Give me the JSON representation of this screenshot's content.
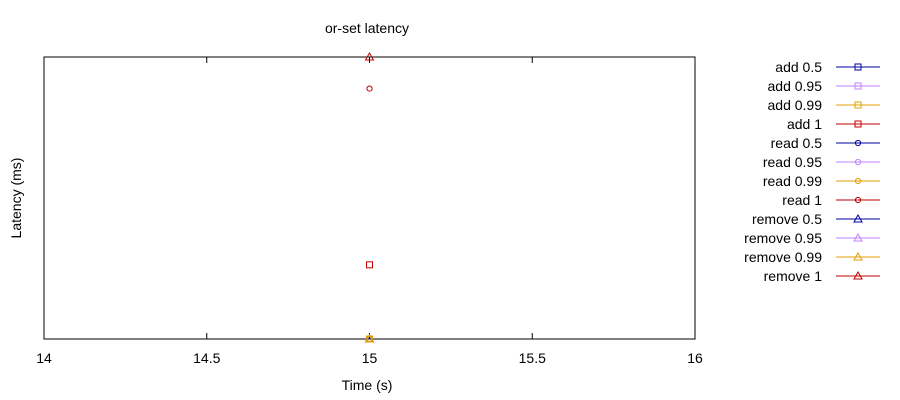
{
  "chart_data": {
    "type": "scatter",
    "title": "or-set latency",
    "xlabel": "Time (s)",
    "ylabel": "Latency (ms)",
    "xlim": [
      14,
      16
    ],
    "x_ticks": [
      "14",
      "14.5",
      "15",
      "15.5",
      "16"
    ],
    "y_ticks_shown": false,
    "grid": false,
    "legend_position": "outside-right",
    "series": [
      {
        "name": "add 0.5",
        "color": "#0000a0",
        "marker": "square",
        "x": 15,
        "y_frac": 0.0
      },
      {
        "name": "add 0.95",
        "color": "#c080ff",
        "marker": "square",
        "x": 15,
        "y_frac": 0.0
      },
      {
        "name": "add 0.99",
        "color": "#e0a000",
        "marker": "square",
        "x": 15,
        "y_frac": 0.0
      },
      {
        "name": "add 1",
        "color": "#c00000",
        "marker": "square",
        "x": 15,
        "y_frac": 0.263
      },
      {
        "name": "read 0.5",
        "color": "#0000a0",
        "marker": "circle",
        "x": 15,
        "y_frac": 0.0
      },
      {
        "name": "read 0.95",
        "color": "#c080ff",
        "marker": "circle",
        "x": 15,
        "y_frac": 0.0
      },
      {
        "name": "read 0.99",
        "color": "#e0a000",
        "marker": "circle",
        "x": 15,
        "y_frac": 0.0
      },
      {
        "name": "read 1",
        "color": "#c00000",
        "marker": "circle",
        "x": 15,
        "y_frac": 0.888
      },
      {
        "name": "remove 0.5",
        "color": "#0000a0",
        "marker": "triangle",
        "x": 15,
        "y_frac": 0.0
      },
      {
        "name": "remove 0.95",
        "color": "#c080ff",
        "marker": "triangle",
        "x": 15,
        "y_frac": 0.0
      },
      {
        "name": "remove 0.99",
        "color": "#e0a000",
        "marker": "triangle",
        "x": 15,
        "y_frac": 0.0
      },
      {
        "name": "remove 1",
        "color": "#c00000",
        "marker": "triangle",
        "x": 15,
        "y_frac": 1.0
      }
    ]
  }
}
